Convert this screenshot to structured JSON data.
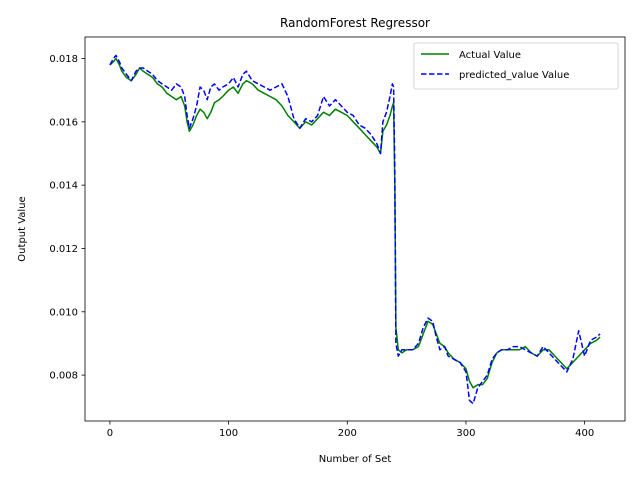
{
  "chart_data": {
    "type": "line",
    "title": "RandomForest Regressor",
    "xlabel": "Number of Set",
    "ylabel": "Output Value",
    "xlim": [
      -21,
      434
    ],
    "ylim": [
      0.00655,
      0.01868
    ],
    "xticks": [
      0,
      100,
      200,
      300,
      400
    ],
    "xtick_labels": [
      "0",
      "100",
      "200",
      "300",
      "400"
    ],
    "yticks": [
      0.008,
      0.01,
      0.012,
      0.014,
      0.016,
      0.018
    ],
    "ytick_labels": [
      "0.008",
      "0.010",
      "0.012",
      "0.014",
      "0.016",
      "0.018"
    ],
    "grid": false,
    "legend": "top-right",
    "colors": {
      "actual": "#008000",
      "predicted": "#0000ff"
    },
    "series": [
      {
        "name": "Actual Value",
        "style": "solid",
        "color": "#008000",
        "x": [
          0,
          3,
          5,
          8,
          10,
          14,
          18,
          22,
          25,
          28,
          32,
          36,
          40,
          44,
          48,
          52,
          56,
          60,
          63,
          65,
          67,
          70,
          73,
          76,
          79,
          82,
          85,
          88,
          92,
          95,
          100,
          104,
          108,
          112,
          115,
          120,
          125,
          130,
          135,
          140,
          145,
          150,
          155,
          160,
          165,
          170,
          175,
          180,
          185,
          190,
          195,
          200,
          205,
          210,
          215,
          220,
          225,
          228,
          230,
          233,
          236,
          238,
          239,
          240,
          241,
          243,
          246,
          250,
          255,
          260,
          264,
          268,
          272,
          275,
          278,
          282,
          285,
          290,
          295,
          300,
          303,
          306,
          310,
          314,
          318,
          322,
          326,
          330,
          335,
          340,
          345,
          350,
          355,
          360,
          365,
          370,
          375,
          380,
          385,
          390,
          395,
          400,
          405,
          410,
          413
        ],
        "y": [
          0.0178,
          0.0179,
          0.018,
          0.0178,
          0.0176,
          0.0174,
          0.0173,
          0.0175,
          0.0177,
          0.0176,
          0.0175,
          0.0174,
          0.0172,
          0.0171,
          0.0169,
          0.0168,
          0.0167,
          0.0168,
          0.0165,
          0.016,
          0.0157,
          0.0159,
          0.0162,
          0.0164,
          0.0163,
          0.0161,
          0.0163,
          0.0166,
          0.0167,
          0.0168,
          0.017,
          0.0171,
          0.0169,
          0.0172,
          0.0173,
          0.0172,
          0.017,
          0.0169,
          0.0168,
          0.0167,
          0.0165,
          0.0162,
          0.016,
          0.0158,
          0.016,
          0.0159,
          0.0161,
          0.0163,
          0.0162,
          0.0164,
          0.0163,
          0.0162,
          0.016,
          0.0158,
          0.0156,
          0.0154,
          0.0152,
          0.015,
          0.0157,
          0.0159,
          0.0162,
          0.0165,
          0.0166,
          0.014,
          0.0095,
          0.0088,
          0.0087,
          0.0088,
          0.0088,
          0.0089,
          0.0093,
          0.0097,
          0.0096,
          0.0093,
          0.009,
          0.0089,
          0.0087,
          0.0085,
          0.0084,
          0.0082,
          0.0078,
          0.0076,
          0.0077,
          0.0077,
          0.0079,
          0.0084,
          0.0087,
          0.0088,
          0.0088,
          0.0088,
          0.0088,
          0.0089,
          0.0087,
          0.0086,
          0.0088,
          0.0088,
          0.0086,
          0.0084,
          0.0082,
          0.0084,
          0.0086,
          0.0088,
          0.009,
          0.0091,
          0.0092
        ]
      },
      {
        "name": "predicted_value Value",
        "style": "dashed",
        "color": "#0000ff",
        "x": [
          0,
          3,
          5,
          8,
          10,
          14,
          18,
          22,
          25,
          28,
          32,
          36,
          40,
          44,
          48,
          52,
          56,
          60,
          63,
          65,
          67,
          70,
          73,
          76,
          79,
          82,
          85,
          88,
          92,
          95,
          100,
          104,
          108,
          112,
          115,
          120,
          125,
          130,
          135,
          140,
          145,
          150,
          155,
          160,
          165,
          170,
          175,
          180,
          185,
          190,
          195,
          200,
          205,
          210,
          215,
          220,
          225,
          228,
          230,
          233,
          236,
          238,
          239,
          240,
          241,
          243,
          246,
          250,
          255,
          260,
          264,
          268,
          272,
          275,
          278,
          282,
          285,
          290,
          295,
          300,
          303,
          306,
          310,
          314,
          318,
          322,
          326,
          330,
          335,
          340,
          345,
          350,
          355,
          360,
          365,
          370,
          375,
          380,
          385,
          390,
          395,
          400,
          405,
          410,
          413
        ],
        "y": [
          0.0178,
          0.018,
          0.0181,
          0.0179,
          0.0177,
          0.0175,
          0.0173,
          0.0176,
          0.0177,
          0.0177,
          0.0176,
          0.0175,
          0.0173,
          0.0172,
          0.0171,
          0.017,
          0.0172,
          0.0171,
          0.0168,
          0.0162,
          0.0158,
          0.0161,
          0.0165,
          0.0171,
          0.017,
          0.0167,
          0.0171,
          0.0172,
          0.017,
          0.0171,
          0.0172,
          0.0174,
          0.0171,
          0.0175,
          0.0176,
          0.0173,
          0.0172,
          0.0171,
          0.017,
          0.0171,
          0.0172,
          0.0168,
          0.0161,
          0.0158,
          0.0161,
          0.016,
          0.0162,
          0.0168,
          0.0165,
          0.0167,
          0.0165,
          0.0163,
          0.0162,
          0.0159,
          0.0158,
          0.0156,
          0.0153,
          0.015,
          0.016,
          0.0163,
          0.0168,
          0.0172,
          0.0171,
          0.0145,
          0.009,
          0.0086,
          0.0088,
          0.0088,
          0.0088,
          0.009,
          0.0095,
          0.0098,
          0.0097,
          0.0092,
          0.0088,
          0.0089,
          0.0086,
          0.0085,
          0.0084,
          0.0081,
          0.0072,
          0.0071,
          0.0076,
          0.0078,
          0.008,
          0.0085,
          0.0087,
          0.0088,
          0.0088,
          0.0089,
          0.0089,
          0.0088,
          0.0087,
          0.0086,
          0.0089,
          0.0087,
          0.0085,
          0.0083,
          0.0081,
          0.0085,
          0.0094,
          0.0086,
          0.0091,
          0.0092,
          0.0093
        ]
      }
    ]
  }
}
